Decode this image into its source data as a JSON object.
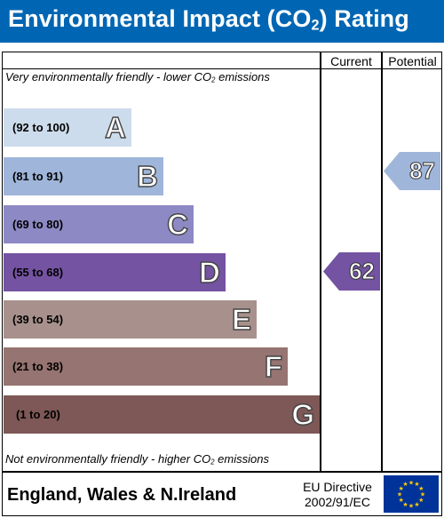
{
  "header": {
    "title_prefix": "Environmental Impact (CO",
    "title_sub": "2",
    "title_suffix": ") Rating"
  },
  "columns": {
    "current": "Current",
    "potential": "Potential"
  },
  "top_note": {
    "prefix": "Very environmentally friendly - lower CO",
    "sub": "2",
    "suffix": " emissions"
  },
  "bottom_note": {
    "prefix": "Not environmentally friendly - higher CO",
    "sub": "2",
    "suffix": " emissions"
  },
  "bands": [
    {
      "range": "(92 to 100)",
      "letter": "A",
      "color": "#cddcec"
    },
    {
      "range": "(81 to 91)",
      "letter": "B",
      "color": "#9fb6da"
    },
    {
      "range": "(69 to 80)",
      "letter": "C",
      "color": "#8d89c4"
    },
    {
      "range": "(55 to 68)",
      "letter": "D",
      "color": "#7453a2"
    },
    {
      "range": "(39 to 54)",
      "letter": "E",
      "color": "#a8918c"
    },
    {
      "range": "(21 to 38)",
      "letter": "F",
      "color": "#967471"
    },
    {
      "range": "(1 to 20)",
      "letter": "G",
      "color": "#7d5856"
    }
  ],
  "current": {
    "value": "62",
    "band": "D",
    "color": "#7453a2"
  },
  "potential": {
    "value": "87",
    "band": "B",
    "color": "#9fb6da"
  },
  "footer": {
    "country": "England, Wales & N.Ireland",
    "directive_line1": "EU Directive",
    "directive_line2": "2002/91/EC"
  },
  "icons": {
    "eu_flag": "eu-flag-icon"
  },
  "colors": {
    "header_bg": "#0066b3",
    "eu_blue": "#003399",
    "eu_star": "#ffcc00"
  }
}
